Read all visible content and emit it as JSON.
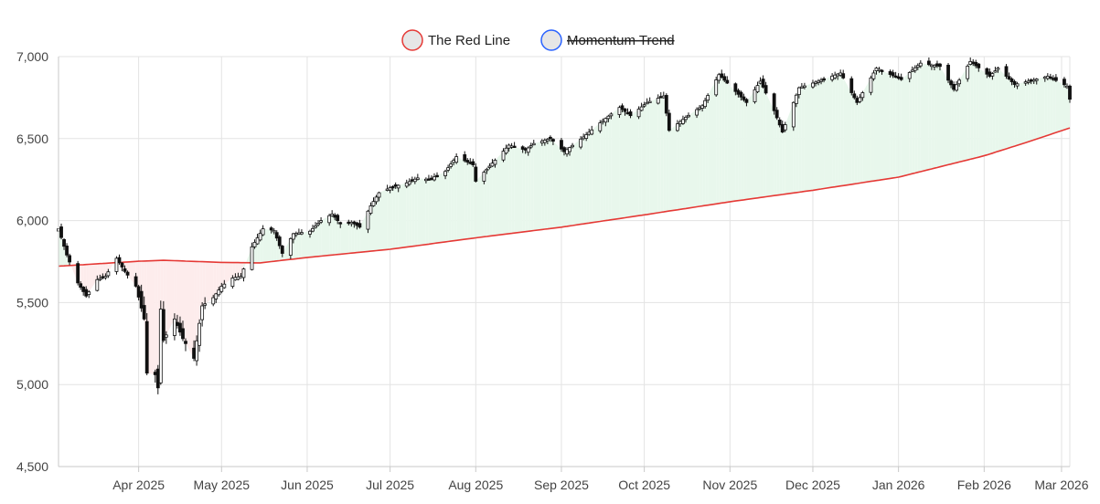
{
  "chart_data": {
    "type": "candlestick",
    "legend": [
      {
        "name": "The Red Line",
        "color": "#e53935",
        "fill": "#e6e6e6",
        "hidden": false
      },
      {
        "name": "Momentum Trend",
        "color": "#2962ff",
        "fill": "#e6e6e6",
        "hidden": true
      }
    ],
    "ylim": [
      4500,
      7000
    ],
    "yticks": [
      "4,500",
      "5,000",
      "5,500",
      "6,000",
      "6,500",
      "7,000"
    ],
    "ytick_values": [
      4500,
      5000,
      5500,
      6000,
      6500,
      7000
    ],
    "xlim": [
      "2025-03-03",
      "2026-03-04"
    ],
    "xticks": [
      {
        "label": "Apr 2025",
        "date": "2025-04-01"
      },
      {
        "label": "May 2025",
        "date": "2025-05-01"
      },
      {
        "label": "Jun 2025",
        "date": "2025-06-01"
      },
      {
        "label": "Jul 2025",
        "date": "2025-07-01"
      },
      {
        "label": "Aug 2025",
        "date": "2025-08-01"
      },
      {
        "label": "Sep 2025",
        "date": "2025-09-01"
      },
      {
        "label": "Oct 2025",
        "date": "2025-10-01"
      },
      {
        "label": "Nov 2025",
        "date": "2025-11-01"
      },
      {
        "label": "Dec 2025",
        "date": "2025-12-01"
      },
      {
        "label": "Jan 2026",
        "date": "2026-01-01"
      },
      {
        "label": "Feb 2026",
        "date": "2026-02-01"
      },
      {
        "label": "Mar 2026",
        "date": "2026-03-01"
      }
    ],
    "grid": true,
    "legend_position": "top-center",
    "colors": {
      "candle": "#111111",
      "red_line": "#e53935",
      "fill_above": "#e8f7ec",
      "fill_below": "#fdecec",
      "grid": "#e3e3e3"
    },
    "red_line": [
      [
        "2025-03-03",
        5722
      ],
      [
        "2025-04-01",
        5752
      ],
      [
        "2025-04-10",
        5758
      ],
      [
        "2025-05-01",
        5745
      ],
      [
        "2025-05-15",
        5742
      ],
      [
        "2025-06-01",
        5775
      ],
      [
        "2025-07-01",
        5825
      ],
      [
        "2025-08-01",
        5895
      ],
      [
        "2025-09-01",
        5960
      ],
      [
        "2025-10-01",
        6035
      ],
      [
        "2025-11-01",
        6115
      ],
      [
        "2025-12-01",
        6185
      ],
      [
        "2026-01-01",
        6265
      ],
      [
        "2026-02-01",
        6395
      ],
      [
        "2026-02-15",
        6470
      ],
      [
        "2026-03-04",
        6565
      ]
    ],
    "close": [
      [
        "2025-03-03",
        5950
      ],
      [
        "2025-03-06",
        5790
      ],
      [
        "2025-03-10",
        5620
      ],
      [
        "2025-03-13",
        5540
      ],
      [
        "2025-03-17",
        5640
      ],
      [
        "2025-03-20",
        5660
      ],
      [
        "2025-03-24",
        5770
      ],
      [
        "2025-03-27",
        5690
      ],
      [
        "2025-03-31",
        5600
      ],
      [
        "2025-04-03",
        5400
      ],
      [
        "2025-04-04",
        5070
      ],
      [
        "2025-04-07",
        5060
      ],
      [
        "2025-04-08",
        4980
      ],
      [
        "2025-04-09",
        5460
      ],
      [
        "2025-04-10",
        5270
      ],
      [
        "2025-04-14",
        5400
      ],
      [
        "2025-04-17",
        5280
      ],
      [
        "2025-04-21",
        5160
      ],
      [
        "2025-04-24",
        5480
      ],
      [
        "2025-04-28",
        5530
      ],
      [
        "2025-05-01",
        5600
      ],
      [
        "2025-05-05",
        5650
      ],
      [
        "2025-05-08",
        5660
      ],
      [
        "2025-05-12",
        5840
      ],
      [
        "2025-05-16",
        5950
      ],
      [
        "2025-05-20",
        5940
      ],
      [
        "2025-05-23",
        5800
      ],
      [
        "2025-05-27",
        5920
      ],
      [
        "2025-06-02",
        5935
      ],
      [
        "2025-06-06",
        6000
      ],
      [
        "2025-06-10",
        6040
      ],
      [
        "2025-06-13",
        5980
      ],
      [
        "2025-06-17",
        5990
      ],
      [
        "2025-06-20",
        5960
      ],
      [
        "2025-06-24",
        6090
      ],
      [
        "2025-06-27",
        6170
      ],
      [
        "2025-07-01",
        6200
      ],
      [
        "2025-07-07",
        6230
      ],
      [
        "2025-07-11",
        6260
      ],
      [
        "2025-07-15",
        6250
      ],
      [
        "2025-07-21",
        6300
      ],
      [
        "2025-07-25",
        6390
      ],
      [
        "2025-07-31",
        6340
      ],
      [
        "2025-08-01",
        6240
      ],
      [
        "2025-08-07",
        6350
      ],
      [
        "2025-08-13",
        6460
      ],
      [
        "2025-08-19",
        6430
      ],
      [
        "2025-08-22",
        6470
      ],
      [
        "2025-08-28",
        6500
      ],
      [
        "2025-09-02",
        6420
      ],
      [
        "2025-09-09",
        6510
      ],
      [
        "2025-09-16",
        6610
      ],
      [
        "2025-09-22",
        6690
      ],
      [
        "2025-09-26",
        6640
      ],
      [
        "2025-10-02",
        6720
      ],
      [
        "2025-10-08",
        6760
      ],
      [
        "2025-10-10",
        6550
      ],
      [
        "2025-10-16",
        6630
      ],
      [
        "2025-10-22",
        6700
      ],
      [
        "2025-10-28",
        6890
      ],
      [
        "2025-11-04",
        6770
      ],
      [
        "2025-11-07",
        6720
      ],
      [
        "2025-11-12",
        6850
      ],
      [
        "2025-11-17",
        6670
      ],
      [
        "2025-11-20",
        6540
      ],
      [
        "2025-11-26",
        6810
      ],
      [
        "2025-12-03",
        6850
      ],
      [
        "2025-12-11",
        6900
      ],
      [
        "2025-12-17",
        6720
      ],
      [
        "2025-12-24",
        6930
      ],
      [
        "2026-01-02",
        6860
      ],
      [
        "2026-01-09",
        6960
      ],
      [
        "2026-01-16",
        6940
      ],
      [
        "2026-01-21",
        6800
      ],
      [
        "2026-01-27",
        6970
      ],
      [
        "2026-02-03",
        6880
      ],
      [
        "2026-02-06",
        6930
      ],
      [
        "2026-02-12",
        6830
      ],
      [
        "2026-02-17",
        6850
      ],
      [
        "2026-02-24",
        6880
      ],
      [
        "2026-03-03",
        6820
      ],
      [
        "2026-03-04",
        6740
      ]
    ]
  }
}
